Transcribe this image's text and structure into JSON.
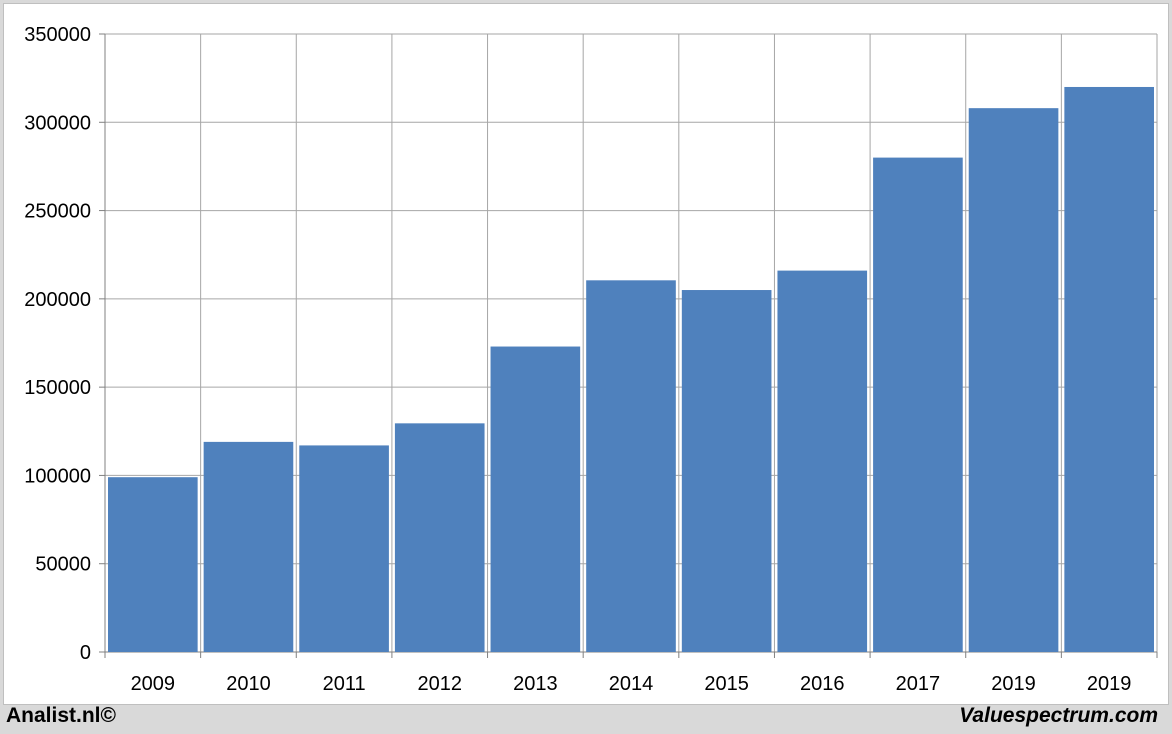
{
  "chart_data": {
    "type": "bar",
    "categories": [
      "2009",
      "2010",
      "2011",
      "2012",
      "2013",
      "2014",
      "2015",
      "2016",
      "2017",
      "2019",
      "2019"
    ],
    "values": [
      99000,
      119000,
      117000,
      129500,
      173000,
      210500,
      205000,
      216000,
      280000,
      308000,
      320000
    ],
    "ylim": [
      0,
      350000
    ],
    "yticks": [
      "0",
      "50000",
      "100000",
      "150000",
      "200000",
      "250000",
      "300000",
      "350000"
    ],
    "ytick_values": [
      0,
      50000,
      100000,
      150000,
      200000,
      250000,
      300000,
      350000
    ],
    "grid": true,
    "bar_color": "#4f81bd",
    "grid_color": "#a6a6a6"
  },
  "footer": {
    "left": "Analist.nl©",
    "right": "Valuespectrum.com"
  }
}
